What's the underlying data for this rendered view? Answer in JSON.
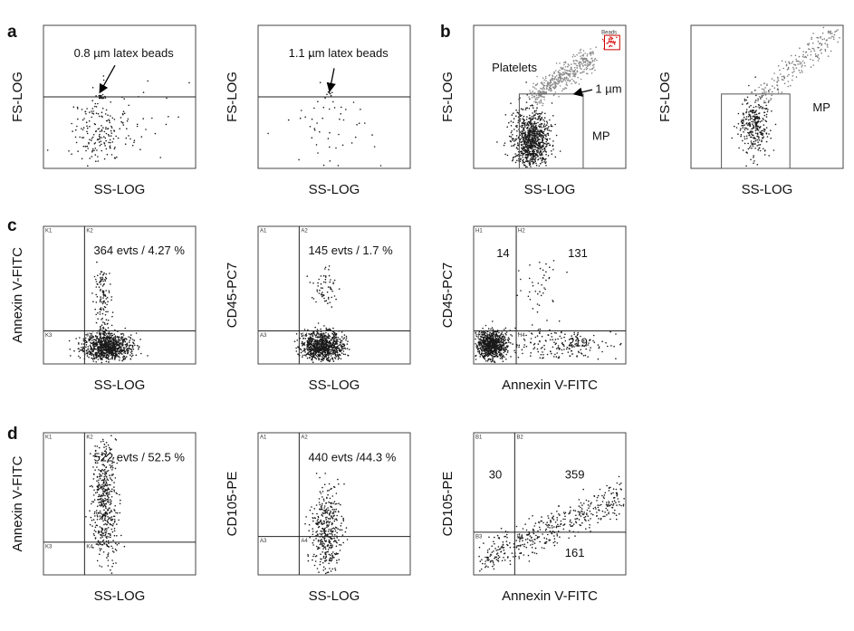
{
  "panel_labels": [
    "a",
    "b",
    "c",
    "d"
  ],
  "plots": [
    {
      "x_label": "SS-LOG",
      "y_label": "FS-LOG",
      "annotations": [
        "0.8 µm latex beads"
      ]
    },
    {
      "x_label": "SS-LOG",
      "y_label": "FS-LOG",
      "annotations": [
        "1.1 µm latex beads"
      ]
    },
    {
      "x_label": "SS-LOG",
      "y_label": "FS-LOG",
      "annotations": [
        "Platelets",
        "1 µm",
        "MP",
        "Beads"
      ]
    },
    {
      "x_label": "SS-LOG",
      "y_label": "FS-LOG",
      "annotations": [
        "MP"
      ]
    },
    {
      "x_label": "SS-LOG",
      "y_label": "Annexin V-FITC",
      "annotations": [
        "364 evts / 4.27 %"
      ],
      "quadrants": [
        "K1",
        "K2",
        "K3",
        "K4"
      ]
    },
    {
      "x_label": "SS-LOG",
      "y_label": "CD45-PC7",
      "annotations": [
        "145 evts / 1.7 %"
      ],
      "quadrants": [
        "A1",
        "A2",
        "A3",
        "A4"
      ]
    },
    {
      "x_label": "Annexin V-FITC",
      "y_label": "CD45-PC7",
      "annotations": [
        "14",
        "131",
        "219"
      ],
      "quadrants": [
        "H1",
        "H2",
        "H3",
        "H4"
      ]
    },
    {
      "x_label": "SS-LOG",
      "y_label": "Annexin V-FITC",
      "annotations": [
        "522 evts / 52.5 %"
      ],
      "quadrants": [
        "K1",
        "K2",
        "K3",
        "K4"
      ]
    },
    {
      "x_label": "SS-LOG",
      "y_label": "CD105-PE",
      "annotations": [
        "440 evts /44.3 %"
      ],
      "quadrants": [
        "A1",
        "A2",
        "A3",
        "A4"
      ]
    },
    {
      "x_label": "Annexin V-FITC",
      "y_label": "CD105-PE",
      "annotations": [
        "30",
        "359",
        "161"
      ],
      "quadrants": [
        "B1",
        "B2",
        "B3",
        "B4"
      ]
    }
  ]
}
